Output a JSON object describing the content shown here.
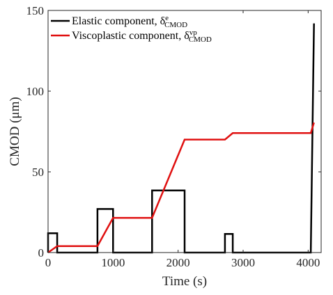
{
  "chart_data": {
    "type": "line",
    "xlabel": "Time (s)",
    "ylabel": "CMOD (μm)",
    "xlim": [
      0,
      4200
    ],
    "ylim": [
      0,
      150
    ],
    "xticks": [
      0,
      1000,
      2000,
      3000,
      4000
    ],
    "yticks": [
      0,
      50,
      100,
      150
    ],
    "grid": false,
    "legend_position": "top-left",
    "series": [
      {
        "key": "elastic",
        "name": "Elastic component, δ",
        "name_sup": "e",
        "name_sub": "CMOD",
        "color": "#000000",
        "x": [
          0,
          0,
          140,
          140,
          760,
          760,
          1000,
          1000,
          1600,
          1600,
          2100,
          2100,
          2720,
          2720,
          2840,
          2840,
          4040,
          4090
        ],
        "y": [
          0,
          12,
          12,
          0,
          0,
          27,
          27,
          0,
          0,
          38.5,
          38.5,
          0,
          0,
          11.5,
          11.5,
          0,
          0,
          142
        ]
      },
      {
        "key": "viscoplastic",
        "name": "Viscoplastic component, δ",
        "name_sup": "vp",
        "name_sub": "CMOD",
        "color": "#e01010",
        "x": [
          0,
          140,
          760,
          1000,
          1600,
          2100,
          2720,
          2840,
          4040,
          4090
        ],
        "y": [
          0,
          4,
          4,
          21.5,
          21.5,
          70,
          70,
          74,
          74,
          80.5
        ]
      }
    ]
  }
}
